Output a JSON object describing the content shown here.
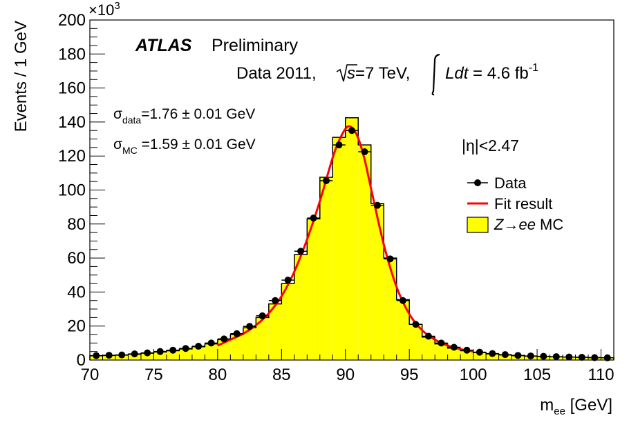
{
  "chart_data": {
    "type": "bar",
    "ylabel": "Events / 1 GeV",
    "xlabel_main": "m",
    "xlabel_sub": "ee",
    "xlabel_unit": " [GeV]",
    "y_multiplier_base": "×10",
    "y_multiplier_exp": "3",
    "xlim": [
      70,
      111
    ],
    "ylim": [
      0,
      200
    ],
    "y_unit_scale": 1000,
    "x_ticks": [
      70,
      75,
      80,
      85,
      90,
      95,
      100,
      105,
      110
    ],
    "y_ticks": [
      0,
      20,
      40,
      60,
      80,
      100,
      120,
      140,
      160,
      180,
      200
    ],
    "annotations": {
      "experiment": "ATLAS",
      "status": "Preliminary",
      "lumi_prefix": "Data 2011, ",
      "sqrt_s": "s",
      "energy": "=7 TeV, ",
      "lumi_integral": "Ldt",
      "lumi_value": " = 4.6 fb",
      "lumi_exp": "-1",
      "sigma_symbol": "σ",
      "sigma_data_sub": "data",
      "sigma_data_value": "=1.76 ± 0.01 GeV",
      "sigma_mc_sub": "MC",
      "sigma_mc_value": " =1.59 ± 0.01 GeV",
      "eta_cut": "|η|<2.47"
    },
    "legend": {
      "position": "right",
      "entries": [
        {
          "label": "Data",
          "kind": "marker"
        },
        {
          "label": "Fit result",
          "kind": "line"
        },
        {
          "label_parts": [
            "Z",
            "→",
            "ee",
            " MC"
          ],
          "kind": "fill"
        }
      ]
    },
    "colors": {
      "mc_fill": "#ffff00",
      "fit_line": "#ff0000",
      "data_marker": "#000000"
    },
    "series": [
      {
        "name": "Data",
        "kind": "points",
        "x": [
          70.5,
          71.5,
          72.5,
          73.5,
          74.5,
          75.5,
          76.5,
          77.5,
          78.5,
          79.5,
          80.5,
          81.5,
          82.5,
          83.5,
          84.5,
          85.5,
          86.5,
          87.5,
          88.5,
          89.5,
          90.5,
          91.5,
          92.5,
          93.5,
          94.5,
          95.5,
          96.5,
          97.5,
          98.5,
          99.5,
          100.5,
          101.5,
          102.5,
          103.5,
          104.5,
          105.5,
          106.5,
          107.5,
          108.5,
          109.5,
          110.5
        ],
        "y": [
          2.6,
          2.8,
          3.0,
          3.6,
          4.2,
          5.0,
          5.8,
          6.8,
          8.1,
          10.0,
          12.4,
          15.5,
          19.8,
          26.0,
          35.0,
          47.0,
          64.0,
          83.5,
          105.5,
          126.5,
          135.0,
          122.5,
          91.0,
          59.5,
          35.0,
          21.0,
          14.0,
          10.0,
          7.5,
          5.8,
          4.6,
          3.8,
          3.2,
          2.7,
          2.4,
          2.2,
          2.0,
          1.8,
          1.6,
          1.4,
          1.3
        ]
      },
      {
        "name": "Z→ee MC",
        "kind": "histogram",
        "bin_edges": [
          70,
          71,
          72,
          73,
          74,
          75,
          76,
          77,
          78,
          79,
          80,
          81,
          82,
          83,
          84,
          85,
          86,
          87,
          88,
          89,
          90,
          91,
          92,
          93,
          94,
          95,
          96,
          97,
          98,
          99,
          100,
          101,
          102,
          103,
          104,
          105,
          106,
          107,
          108,
          109,
          110,
          111
        ],
        "values": [
          2.5,
          2.7,
          2.9,
          3.4,
          4.0,
          4.7,
          5.5,
          6.5,
          7.8,
          9.5,
          12.0,
          15.0,
          19.0,
          25.0,
          33.0,
          45.0,
          62.0,
          83.0,
          107.5,
          131.0,
          142.5,
          126.5,
          92.0,
          60.0,
          35.5,
          21.0,
          13.5,
          9.5,
          7.0,
          5.5,
          4.4,
          3.6,
          3.0,
          2.6,
          2.3,
          2.1,
          1.9,
          1.7,
          1.6,
          1.4,
          1.3
        ]
      },
      {
        "name": "Fit result",
        "kind": "curve",
        "x": [
          80,
          81,
          82,
          83,
          84,
          85,
          86,
          87,
          88,
          89,
          89.5,
          90,
          90.3,
          90.6,
          91,
          91.5,
          92,
          93,
          94,
          95,
          96,
          97,
          98,
          99,
          100
        ],
        "y": [
          8.5,
          12,
          15.5,
          20.5,
          27.5,
          37.5,
          52,
          71,
          93.5,
          119,
          129,
          136,
          137.5,
          136,
          130.5,
          118,
          101,
          68,
          43,
          27,
          17.5,
          12,
          8.5,
          6.4,
          5.0
        ]
      }
    ]
  }
}
